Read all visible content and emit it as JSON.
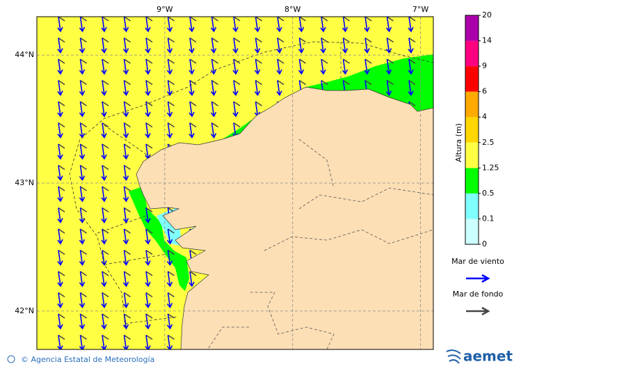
{
  "map": {
    "xlim": [
      -10,
      -6.9
    ],
    "ylim": [
      41.7,
      44.3
    ],
    "lon_ticks": [
      {
        "value": -9,
        "label": "9°W"
      },
      {
        "value": -8,
        "label": "8°W"
      },
      {
        "value": -7,
        "label": "7°W"
      }
    ],
    "lat_ticks": [
      {
        "value": 44,
        "label": "44°N"
      },
      {
        "value": 43,
        "label": "43°N"
      },
      {
        "value": 42,
        "label": "42°N"
      }
    ]
  },
  "colorbar": {
    "title": "Altura (m)",
    "levels": [
      0,
      0.1,
      0.5,
      1.25,
      2.5,
      4,
      6,
      9,
      14,
      20
    ],
    "colors": [
      "#ccffff",
      "#80ffff",
      "#00ff00",
      "#ffff44",
      "#ffd700",
      "#ffaa00",
      "#ff0000",
      "#ff0080",
      "#aa00aa"
    ]
  },
  "legend": [
    {
      "label": "Mar de viento",
      "color": "#0000ff"
    },
    {
      "label": "Mar de fondo",
      "color": "#444444"
    }
  ],
  "footer": {
    "credit": "© Agencia Estatal de Meteorología",
    "logo": "aemet"
  }
}
